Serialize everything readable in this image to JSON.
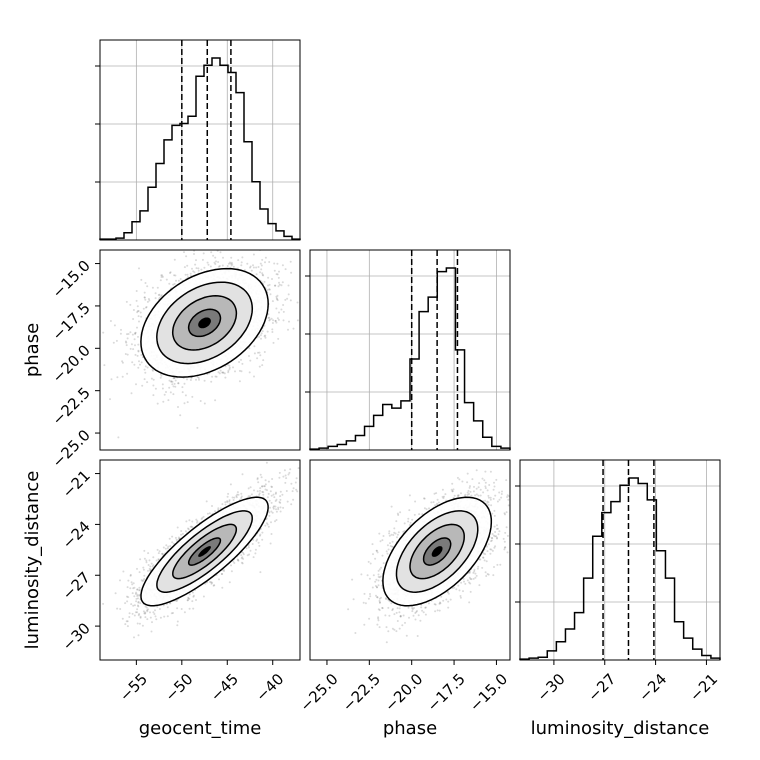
{
  "chart_data": {
    "type": "corner",
    "parameters": [
      {
        "name": "geocent_time",
        "label": "geocent_time",
        "range": [
          -59,
          -37
        ],
        "ticks": [
          -55,
          -50,
          -45,
          -40
        ],
        "tick_labels": [
          "−55",
          "−50",
          "−45",
          "−40"
        ],
        "quantiles": [
          -50,
          -47.2,
          -44.6
        ],
        "histogram": [
          0.005,
          0.005,
          0.01,
          0.04,
          0.1,
          0.16,
          0.29,
          0.42,
          0.55,
          0.63,
          0.64,
          0.68,
          0.9,
          0.96,
          1.0,
          0.96,
          0.92,
          0.81,
          0.54,
          0.32,
          0.17,
          0.09,
          0.05,
          0.02,
          0.005
        ]
      },
      {
        "name": "phase",
        "label": "phase",
        "range": [
          -26,
          -14.2
        ],
        "ticks": [
          -25.0,
          -22.5,
          -20.0,
          -17.5,
          -15.0
        ],
        "tick_labels": [
          "−25.0",
          "−22.5",
          "−20.0",
          "−17.5",
          "−15.0"
        ],
        "quantiles": [
          -20,
          -18.5,
          -17.3
        ],
        "histogram": [
          0.005,
          0.01,
          0.02,
          0.03,
          0.05,
          0.08,
          0.13,
          0.19,
          0.25,
          0.23,
          0.27,
          0.5,
          0.76,
          0.84,
          0.98,
          1.0,
          0.55,
          0.26,
          0.16,
          0.07,
          0.02,
          0.01
        ]
      },
      {
        "name": "luminosity_distance",
        "label": "luminosity_distance",
        "range": [
          -32,
          -20.2
        ],
        "ticks": [
          -30,
          -27,
          -24,
          -21
        ],
        "tick_labels": [
          "−30",
          "−27",
          "−24",
          "−21"
        ],
        "quantiles": [
          -27.1,
          -25.6,
          -24.1
        ],
        "histogram": [
          0.005,
          0.01,
          0.015,
          0.05,
          0.1,
          0.17,
          0.26,
          0.45,
          0.68,
          0.81,
          0.87,
          0.96,
          1.0,
          0.97,
          0.88,
          0.6,
          0.45,
          0.21,
          0.12,
          0.06,
          0.025,
          0.01
        ]
      }
    ],
    "pairs": [
      {
        "x": "geocent_time",
        "y": "phase",
        "mean": [
          -47.5,
          -18.5
        ],
        "sd": [
          3.5,
          1.6
        ],
        "rho": 0.35
      },
      {
        "x": "geocent_time",
        "y": "luminosity_distance",
        "mean": [
          -47.5,
          -25.6
        ],
        "sd": [
          3.5,
          1.6
        ],
        "rho": 0.82
      },
      {
        "x": "phase",
        "y": "luminosity_distance",
        "mean": [
          -18.5,
          -25.6
        ],
        "sd": [
          1.6,
          1.6
        ],
        "rho": 0.55
      }
    ],
    "contour_levels_sigma": [
      0.5,
      1.0,
      1.5,
      2.0
    ],
    "grid": true
  }
}
